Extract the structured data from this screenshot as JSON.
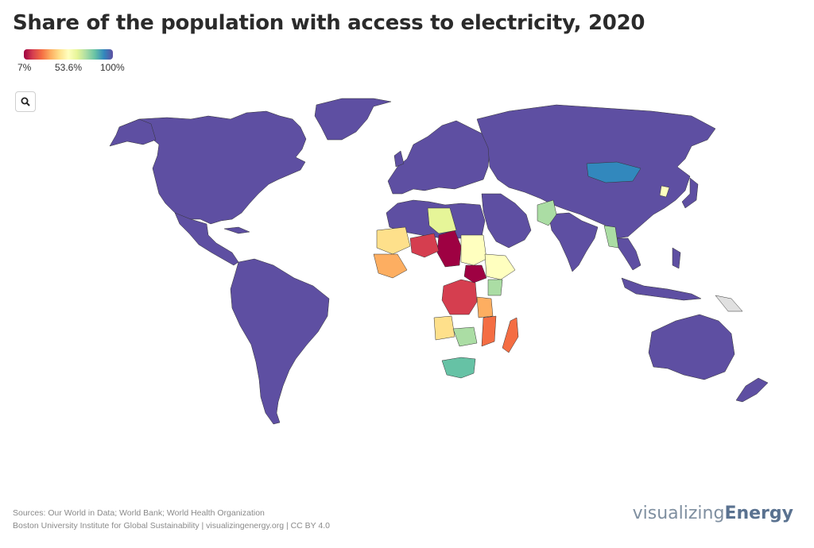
{
  "title": "Share of the population with access to electricity, 2020",
  "legend": {
    "min_label": "7%",
    "mid_label": "53.6%",
    "max_label": "100%",
    "colors": [
      "#9e0142",
      "#d53e4f",
      "#f46d43",
      "#fdae61",
      "#fee08b",
      "#ffffbf",
      "#e6f598",
      "#abdda4",
      "#66c2a5",
      "#3288bd",
      "#5e4fa2"
    ]
  },
  "zoom": {
    "icon": "magnifier-icon"
  },
  "footer": {
    "sources": "Sources: Our World in Data; World Bank; World Health Organization",
    "credit": "Boston University Institute for Global Sustainability | visualizingenergy.org | CC BY 4.0"
  },
  "brand": {
    "light": "visualizing",
    "bold": "Energy"
  },
  "map": {
    "no_data_color": "#e0e0e0",
    "land_color_full": "#5e4fa2"
  }
}
